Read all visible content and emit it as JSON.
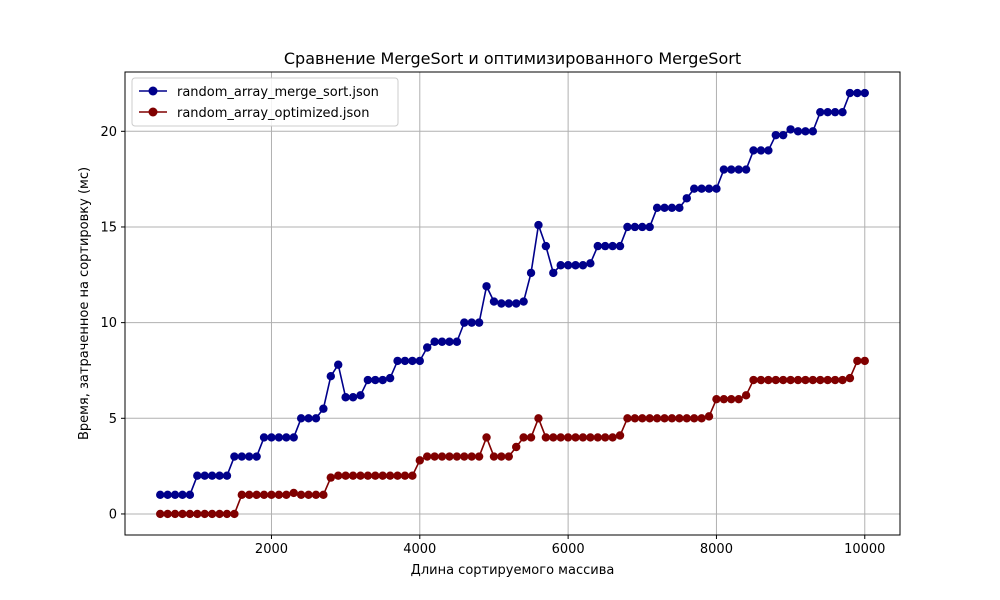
{
  "chart_data": {
    "type": "line",
    "title": "Сравнение MergeSort и оптимизированного MergeSort",
    "xlabel": "Длина сортируемого массива",
    "ylabel": "Время, затраченное на сортировку (мс)",
    "xlim": [
      25,
      10475
    ],
    "ylim": [
      -1.1,
      23.1
    ],
    "xticks": [
      2000,
      4000,
      6000,
      8000,
      10000
    ],
    "xtick_labels": [
      "2000",
      "4000",
      "6000",
      "8000",
      "10000"
    ],
    "yticks": [
      0,
      5,
      10,
      15,
      20
    ],
    "ytick_labels": [
      "0",
      "5",
      "10",
      "15",
      "20"
    ],
    "grid": true,
    "legend_position": "upper-left",
    "x": [
      500,
      600,
      700,
      800,
      900,
      1000,
      1100,
      1200,
      1300,
      1400,
      1500,
      1600,
      1700,
      1800,
      1900,
      2000,
      2100,
      2200,
      2300,
      2400,
      2500,
      2600,
      2700,
      2800,
      2900,
      3000,
      3100,
      3200,
      3300,
      3400,
      3500,
      3600,
      3700,
      3800,
      3900,
      4000,
      4100,
      4200,
      4300,
      4400,
      4500,
      4600,
      4700,
      4800,
      4900,
      5000,
      5100,
      5200,
      5300,
      5400,
      5500,
      5600,
      5700,
      5800,
      5900,
      6000,
      6100,
      6200,
      6300,
      6400,
      6500,
      6600,
      6700,
      6800,
      6900,
      7000,
      7100,
      7200,
      7300,
      7400,
      7500,
      7600,
      7700,
      7800,
      7900,
      8000,
      8100,
      8200,
      8300,
      8400,
      8500,
      8600,
      8700,
      8800,
      8900,
      9000,
      9100,
      9200,
      9300,
      9400,
      9500,
      9600,
      9700,
      9800,
      9900,
      10000
    ],
    "series": [
      {
        "name": "random_array_merge_sort.json",
        "color": "#00008b",
        "values": [
          1,
          1,
          1,
          1,
          1,
          2,
          2,
          2,
          2,
          2,
          3,
          3,
          3,
          3,
          4,
          4,
          4,
          4,
          4,
          5,
          5,
          5,
          5.5,
          7.2,
          7.8,
          6.1,
          6.1,
          6.2,
          7,
          7,
          7,
          7.1,
          8,
          8,
          8,
          8,
          8.7,
          9,
          9,
          9,
          9,
          10,
          10,
          10,
          11.9,
          11.1,
          11,
          11,
          11,
          11.1,
          12.6,
          15.1,
          14,
          12.6,
          13,
          13,
          13,
          13,
          13.1,
          14,
          14,
          14,
          14,
          15,
          15,
          15,
          15,
          16,
          16,
          16,
          16,
          16.5,
          17,
          17,
          17,
          17,
          18,
          18,
          18,
          18,
          19,
          19,
          19,
          19.8,
          19.8,
          20.1,
          20,
          20,
          20,
          21,
          21,
          21,
          21,
          22,
          22,
          22
        ]
      },
      {
        "name": "random_array_optimized.json",
        "color": "#800000",
        "values": [
          0,
          0,
          0,
          0,
          0,
          0,
          0,
          0,
          0,
          0,
          0,
          1,
          1,
          1,
          1,
          1,
          1,
          1,
          1.1,
          1,
          1,
          1,
          1,
          1.9,
          2,
          2,
          2,
          2,
          2,
          2,
          2,
          2,
          2,
          2,
          2,
          2.8,
          3,
          3,
          3,
          3,
          3,
          3,
          3,
          3,
          4,
          3,
          3,
          3,
          3.5,
          4,
          4,
          5,
          4,
          4,
          4,
          4,
          4,
          4,
          4,
          4,
          4,
          4,
          4.1,
          5,
          5,
          5,
          5,
          5,
          5,
          5,
          5,
          5,
          5,
          5,
          5.1,
          6,
          6,
          6,
          6,
          6.2,
          7,
          7,
          7,
          7,
          7,
          7,
          7,
          7,
          7,
          7,
          7,
          7,
          7,
          7.1,
          8,
          8
        ]
      }
    ]
  }
}
